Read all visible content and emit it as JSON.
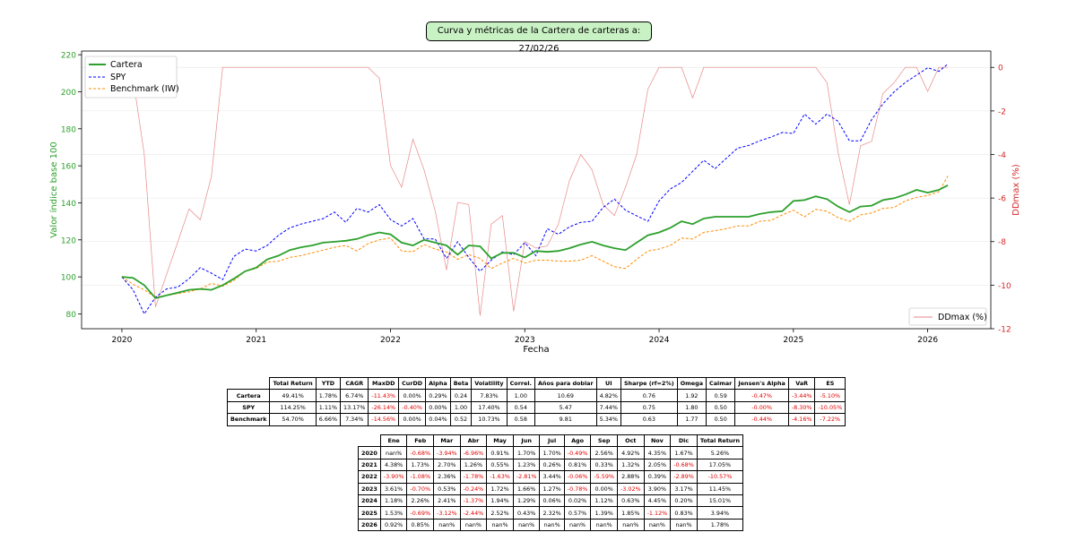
{
  "title": "Curva y métricas de la Cartera de carteras a: 27/02/26",
  "chart_data": {
    "type": "line",
    "xlabel": "Fecha",
    "ylabel": "Valor índice base 100",
    "y2label": "DDmax (%)",
    "xticks": [
      "2020",
      "2021",
      "2022",
      "2023",
      "2024",
      "2025",
      "2026"
    ],
    "xlim": [
      2019.7,
      2026.47
    ],
    "ylim": [
      72,
      222
    ],
    "yticks": [
      80,
      100,
      120,
      140,
      160,
      180,
      200,
      220
    ],
    "y2lim": [
      -12,
      0.75
    ],
    "y2ticks": [
      0,
      -2,
      -4,
      -6,
      -8,
      -10,
      -12
    ],
    "grid": true,
    "legend_main": "top-left",
    "legend_dd": "bottom-right",
    "x": [
      2020.0,
      2020.083,
      2020.167,
      2020.25,
      2020.333,
      2020.417,
      2020.5,
      2020.583,
      2020.667,
      2020.75,
      2020.833,
      2020.917,
      2021.0,
      2021.083,
      2021.167,
      2021.25,
      2021.333,
      2021.417,
      2021.5,
      2021.583,
      2021.667,
      2021.75,
      2021.833,
      2021.917,
      2022.0,
      2022.083,
      2022.167,
      2022.25,
      2022.333,
      2022.417,
      2022.5,
      2022.583,
      2022.667,
      2022.75,
      2022.833,
      2022.917,
      2023.0,
      2023.083,
      2023.167,
      2023.25,
      2023.333,
      2023.417,
      2023.5,
      2023.583,
      2023.667,
      2023.75,
      2023.833,
      2023.917,
      2024.0,
      2024.083,
      2024.167,
      2024.25,
      2024.333,
      2024.417,
      2024.5,
      2024.583,
      2024.667,
      2024.75,
      2024.833,
      2024.917,
      2025.0,
      2025.083,
      2025.167,
      2025.25,
      2025.333,
      2025.417,
      2025.5,
      2025.583,
      2025.667,
      2025.75,
      2025.833,
      2025.917,
      2026.0,
      2026.083,
      2026.15
    ],
    "series": [
      {
        "name": "Cartera",
        "color": "#2ca02c",
        "style": "solid",
        "values": [
          100,
          99.5,
          95.5,
          88.5,
          90,
          91.5,
          93,
          93.5,
          93,
          95.5,
          99,
          103,
          105,
          109.5,
          111.5,
          114.5,
          116,
          117,
          118.5,
          119,
          119.5,
          120.5,
          122.5,
          124,
          123,
          118.5,
          117,
          120,
          118.5,
          117,
          112,
          117,
          116.5,
          110,
          113,
          113,
          110.5,
          114,
          113.5,
          114,
          115.5,
          117.5,
          119,
          117,
          115.5,
          114.5,
          118.5,
          122.5,
          124,
          126.5,
          130,
          128.5,
          131.5,
          132.5,
          132.5,
          132.5,
          132.5,
          134,
          135,
          135.5,
          141,
          141.5,
          143.5,
          142,
          138,
          135,
          138,
          138.5,
          141.5,
          142.5,
          144.5,
          147,
          145.5,
          147,
          149.5
        ]
      },
      {
        "name": "SPY",
        "color": "#0000ff",
        "style": "dashed",
        "values": [
          100,
          93,
          80,
          89,
          93.5,
          94.5,
          99,
          105,
          102,
          98.5,
          111,
          115,
          114,
          117,
          122.5,
          126.5,
          128.5,
          130,
          131.5,
          135,
          129.5,
          137,
          135,
          139,
          131,
          127.5,
          131.5,
          120.5,
          120.5,
          110,
          119,
          110.5,
          103,
          109,
          113.5,
          112,
          118.5,
          111.5,
          126,
          123,
          127,
          129.5,
          130,
          137.5,
          142,
          136,
          133,
          130,
          141,
          147.5,
          151,
          157,
          163,
          158.5,
          164,
          169.5,
          171,
          173.5,
          175.5,
          178,
          177.5,
          188,
          182.5,
          188,
          184,
          173.5,
          173.5,
          185,
          193.5,
          200,
          205,
          209,
          213,
          211,
          215
        ]
      },
      {
        "name": "Benchmark (IW)",
        "color": "#ff8c00",
        "style": "dashed",
        "values": [
          100,
          96,
          93,
          89,
          90,
          91,
          92,
          93.5,
          96.5,
          95,
          98,
          103,
          104.5,
          108,
          108.5,
          110.5,
          111.5,
          113,
          114.5,
          116,
          117,
          114,
          118,
          120,
          121,
          114,
          113.5,
          117.5,
          115,
          113.5,
          109.5,
          112,
          110,
          104.5,
          107.5,
          110,
          107.5,
          109,
          109,
          108.5,
          108.5,
          109,
          111.5,
          108.5,
          105.5,
          104.5,
          109.5,
          114,
          115,
          117,
          121,
          120.5,
          124,
          125,
          126,
          127.5,
          127.5,
          130,
          130.5,
          133.5,
          136,
          132.5,
          136.5,
          135.5,
          132,
          130,
          133.5,
          134.5,
          137,
          137.5,
          141,
          143,
          144,
          146,
          154.5
        ]
      },
      {
        "name": "DDmax (%)",
        "color": "#e06060",
        "style": "solid",
        "axis": "right",
        "values": [
          0,
          -0.5,
          -4,
          -11,
          -9.5,
          -8,
          -6.5,
          -7,
          -5,
          0,
          0,
          0,
          0,
          0,
          0,
          0,
          0,
          0,
          0,
          0,
          0,
          0,
          0,
          -0.5,
          -4.5,
          -5.5,
          -3.3,
          -4.7,
          -6.6,
          -9.3,
          -6.2,
          -6.3,
          -11.4,
          -7.2,
          -6.8,
          -11.2,
          -8.0,
          -8.3,
          -8.2,
          -7.2,
          -5.2,
          -4.0,
          -4.7,
          -6.3,
          -6.8,
          -5.5,
          -4.0,
          -1,
          0,
          0,
          0,
          -1.4,
          0,
          0,
          0,
          0,
          0,
          0,
          0,
          0,
          0,
          0,
          0,
          -0.7,
          -3.9,
          -6.3,
          -3.6,
          -3.4,
          -1.2,
          -0.7,
          0,
          0,
          -1.1,
          0,
          0
        ]
      }
    ]
  },
  "metrics_table": {
    "headers": [
      "",
      "Total Return",
      "YTD",
      "CAGR",
      "MaxDD",
      "CurDD",
      "Alpha",
      "Beta",
      "Volatility",
      "Correl.",
      "Años para doblar",
      "UI",
      "Sharpe (rf=2%)",
      "Omega",
      "Calmar",
      "Jensen's Alpha",
      "VaR",
      "ES"
    ],
    "rows": [
      [
        "Cartera",
        "49.41%",
        "1.78%",
        "6.74%",
        "-11.43%",
        "0.00%",
        "0.29%",
        "0.24",
        "7.83%",
        "1.00",
        "10.69",
        "4.82%",
        "0.76",
        "1.92",
        "0.59",
        "-0.47%",
        "-3.44%",
        "-5.10%"
      ],
      [
        "SPY",
        "114.25%",
        "1.11%",
        "13.17%",
        "-26.14%",
        "-0.40%",
        "0.00%",
        "1.00",
        "17.40%",
        "0.54",
        "5.47",
        "7.44%",
        "0.75",
        "1.80",
        "0.50",
        "-0.00%",
        "-8.30%",
        "-10.05%"
      ],
      [
        "Benchmark",
        "54.70%",
        "6.66%",
        "7.34%",
        "-14.56%",
        "0.00%",
        "0.04%",
        "0.52",
        "10.73%",
        "0.58",
        "9.81",
        "5.34%",
        "0.63",
        "1.77",
        "0.50",
        "-0.44%",
        "-4.16%",
        "-7.22%"
      ]
    ]
  },
  "monthly_table": {
    "headers": [
      "",
      "Ene",
      "Feb",
      "Mar",
      "Abr",
      "May",
      "Jun",
      "Jul",
      "Ago",
      "Sep",
      "Oct",
      "Nov",
      "Dic",
      "Total Return"
    ],
    "rows": [
      [
        "2020",
        "nan%",
        "-0.68%",
        "-3.94%",
        "-6.96%",
        "0.91%",
        "1.70%",
        "1.70%",
        "-0.49%",
        "2.56%",
        "4.92%",
        "4.35%",
        "1.67%",
        "5.26%"
      ],
      [
        "2021",
        "4.38%",
        "1.73%",
        "2.70%",
        "1.26%",
        "0.55%",
        "1.23%",
        "0.26%",
        "0.81%",
        "0.33%",
        "1.32%",
        "2.05%",
        "-0.68%",
        "17.05%"
      ],
      [
        "2022",
        "-3.90%",
        "-1.08%",
        "2.36%",
        "-1.78%",
        "-1.63%",
        "-2.81%",
        "3.44%",
        "-0.06%",
        "-5.59%",
        "2.88%",
        "0.39%",
        "-2.89%",
        "-10.57%"
      ],
      [
        "2023",
        "3.61%",
        "-0.70%",
        "0.53%",
        "-0.24%",
        "1.72%",
        "1.66%",
        "1.27%",
        "-0.78%",
        "0.00%",
        "-3.02%",
        "3.90%",
        "3.17%",
        "11.45%"
      ],
      [
        "2024",
        "1.18%",
        "2.26%",
        "2.41%",
        "-1.37%",
        "1.94%",
        "1.29%",
        "0.06%",
        "0.02%",
        "1.12%",
        "0.63%",
        "4.45%",
        "0.20%",
        "15.01%"
      ],
      [
        "2025",
        "1.53%",
        "-0.69%",
        "-3.12%",
        "-2.44%",
        "2.52%",
        "0.43%",
        "2.32%",
        "0.57%",
        "1.39%",
        "1.85%",
        "-1.12%",
        "0.83%",
        "3.94%"
      ],
      [
        "2026",
        "0.92%",
        "0.85%",
        "nan%",
        "nan%",
        "nan%",
        "nan%",
        "nan%",
        "nan%",
        "nan%",
        "nan%",
        "nan%",
        "nan%",
        "1.78%"
      ]
    ]
  }
}
